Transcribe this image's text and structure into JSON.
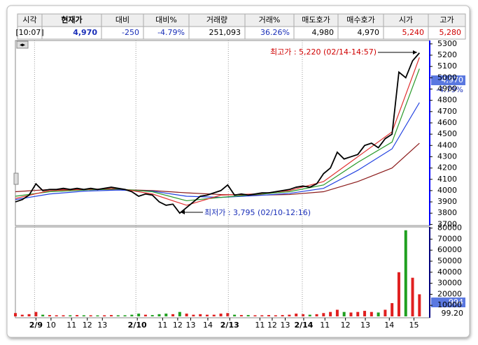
{
  "header": {
    "columns": [
      "시각",
      "현재가",
      "대비",
      "대비%",
      "거래량",
      "거래%",
      "매도호가",
      "매수호가",
      "시가",
      "고가"
    ],
    "row": [
      "[10:07]",
      "4,970",
      "-250",
      "-4.79%",
      "251,093",
      "36.26%",
      "4,980",
      "4,970",
      "5,240",
      "5,280"
    ],
    "colors": [
      "#000000",
      "#1a2fb8",
      "#1a2fb8",
      "#1a2fb8",
      "#000000",
      "#1a2fb8",
      "#000000",
      "#000000",
      "#d00000",
      "#d00000"
    ]
  },
  "chart_data": [
    {
      "type": "line",
      "xlim": [
        0,
        60.5
      ],
      "ylim": [
        3690,
        5330
      ],
      "yticks": [
        3700,
        3800,
        3900,
        4000,
        4100,
        4200,
        4300,
        4400,
        4500,
        4600,
        4700,
        4800,
        4900,
        5000,
        5100,
        5200,
        5300
      ],
      "series": [
        {
          "color": "#000000",
          "values": [
            3900,
            3920,
            3960,
            4060,
            4000,
            4010,
            4010,
            4020,
            4010,
            4020,
            4010,
            4020,
            4010,
            4020,
            4030,
            4020,
            4010,
            3990,
            3950,
            3970,
            3960,
            3900,
            3870,
            3880,
            3800,
            3850,
            3900,
            3950,
            3960,
            3980,
            4000,
            4050,
            3960,
            3970,
            3960,
            3970,
            3980,
            3980,
            3990,
            4000,
            4010,
            4030,
            4040,
            4030,
            4060,
            4150,
            4200,
            4340,
            4280,
            4300,
            4320,
            4400,
            4420,
            4380,
            4460,
            4500,
            5050,
            5000,
            5150,
            5220
          ]
        },
        {
          "color": "#e03030",
          "x": [
            0,
            5,
            10,
            15,
            20,
            25,
            30,
            35,
            40,
            45,
            50,
            55,
            59
          ],
          "values": [
            3930,
            4000,
            4010,
            4020,
            3970,
            3870,
            3960,
            3970,
            4000,
            4080,
            4300,
            4520,
            5180
          ]
        },
        {
          "color": "#2a9a2a",
          "x": [
            0,
            5,
            10,
            15,
            20,
            25,
            30,
            35,
            40,
            45,
            50,
            55,
            59
          ],
          "values": [
            3950,
            3990,
            4005,
            4015,
            3990,
            3910,
            3940,
            3965,
            3990,
            4050,
            4250,
            4430,
            5080
          ]
        },
        {
          "color": "#2040e0",
          "x": [
            0,
            5,
            10,
            15,
            20,
            25,
            30,
            35,
            40,
            45,
            50,
            55,
            59
          ],
          "values": [
            3920,
            3970,
            3995,
            4005,
            3995,
            3950,
            3940,
            3955,
            3975,
            4020,
            4180,
            4370,
            4780
          ]
        },
        {
          "color": "#8b1a1a",
          "x": [
            0,
            5,
            10,
            15,
            20,
            25,
            30,
            35,
            40,
            45,
            50,
            55,
            59
          ],
          "values": [
            3990,
            4010,
            4010,
            4010,
            4000,
            3980,
            3965,
            3960,
            3965,
            3990,
            4080,
            4200,
            4420
          ]
        }
      ],
      "annotations": [
        {
          "text": "최고가 : 5,220 (02/14-14:57)",
          "color": "#d00000"
        },
        {
          "text": "최저가 : 3,795 (02/10-12:16)",
          "color": "#1a2fb8"
        }
      ],
      "current_label": "4,970",
      "change_label": "-4.79%"
    },
    {
      "type": "bar",
      "xlim": [
        0,
        60.5
      ],
      "ylim": [
        0,
        81000
      ],
      "yticks": [
        10000,
        20000,
        30000,
        40000,
        50000,
        60000,
        70000,
        80000
      ],
      "values": [
        3000,
        1500,
        2000,
        4000,
        1500,
        1200,
        1000,
        1000,
        1000,
        1200,
        1000,
        1000,
        900,
        1000,
        1200,
        1000,
        1000,
        1500,
        2500,
        1500,
        1200,
        2000,
        2500,
        2000,
        4000,
        2500,
        1500,
        2000,
        1500,
        1500,
        2500,
        3000,
        1500,
        1200,
        1200,
        1000,
        1000,
        1200,
        1000,
        1200,
        1500,
        2500,
        2000,
        1500,
        2000,
        3000,
        4000,
        6000,
        4000,
        3500,
        4000,
        5000,
        4000,
        3500,
        6000,
        12000,
        40000,
        78000,
        35000,
        20000
      ],
      "colors": [
        "#e02020",
        "#20a020"
      ],
      "xticks": [
        {
          "value": 3,
          "label": "2/9"
        },
        {
          "value": 5.2,
          "label": "10"
        },
        {
          "value": 8.2,
          "label": "11"
        },
        {
          "value": 10.5,
          "label": "12"
        },
        {
          "value": 12.7,
          "label": "13"
        },
        {
          "value": 17.8,
          "label": "2/10"
        },
        {
          "value": 21.5,
          "label": "11"
        },
        {
          "value": 23.7,
          "label": "12"
        },
        {
          "value": 25.6,
          "label": "13"
        },
        {
          "value": 28.1,
          "label": "14"
        },
        {
          "value": 31.3,
          "label": "2/13"
        },
        {
          "value": 35.7,
          "label": "11"
        },
        {
          "value": 37.5,
          "label": "12"
        },
        {
          "value": 39.4,
          "label": "13"
        },
        {
          "value": 42.1,
          "label": "2/14"
        },
        {
          "value": 45.2,
          "label": "11"
        },
        {
          "value": 48.2,
          "label": "12"
        },
        {
          "value": 51.1,
          "label": "13"
        },
        {
          "value": 54.6,
          "label": "14"
        },
        {
          "value": 58.2,
          "label": "15"
        }
      ],
      "last_label": "994",
      "ratio_label": "99.20"
    }
  ]
}
